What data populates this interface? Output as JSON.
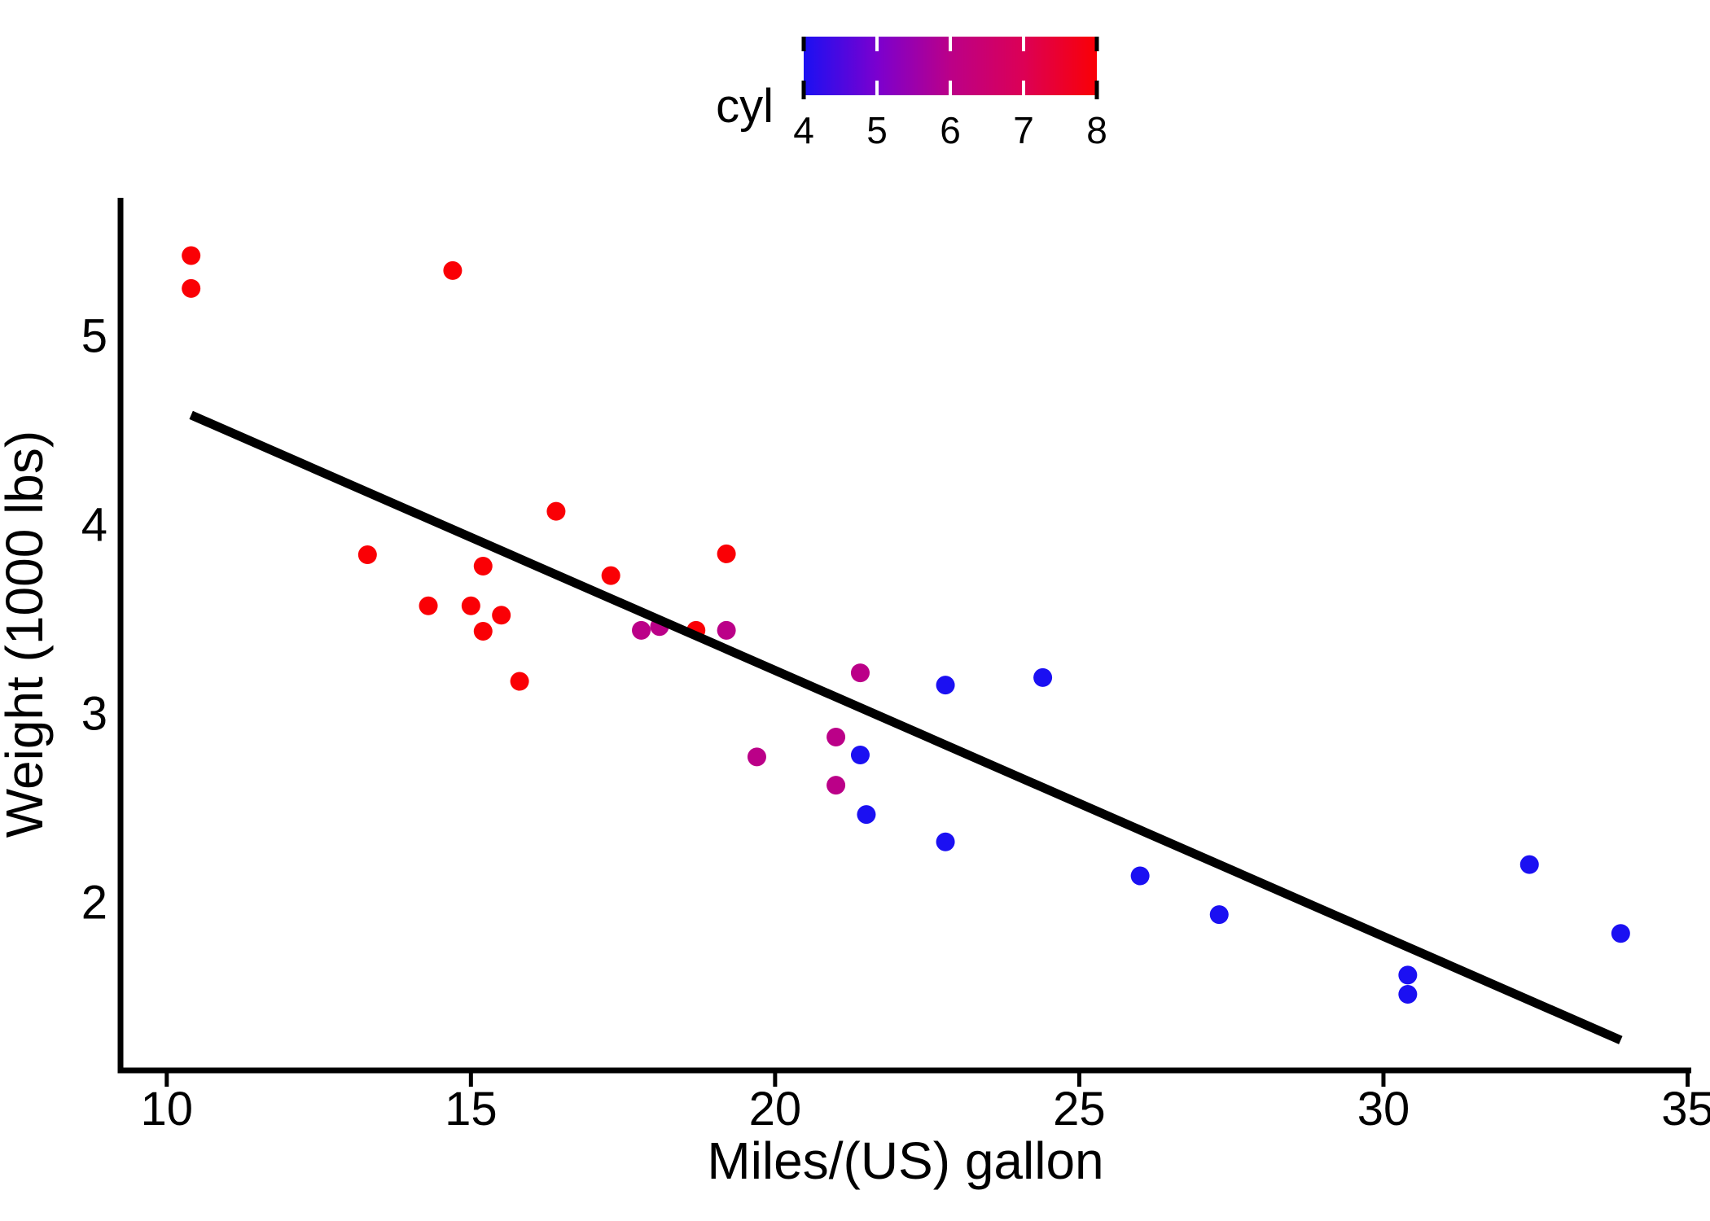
{
  "chart_data": {
    "type": "scatter",
    "title": "",
    "xlabel": "Miles/(US) gallon",
    "ylabel": "Weight (1000 lbs)",
    "xlim": [
      9.24,
      35.06
    ],
    "ylim": [
      1.11,
      5.73
    ],
    "x_ticks": [
      "10",
      "15",
      "20",
      "25",
      "30",
      "35"
    ],
    "x_tick_values": [
      10,
      15,
      20,
      25,
      30,
      35
    ],
    "y_ticks": [
      "2",
      "3",
      "4",
      "5"
    ],
    "y_tick_values": [
      2,
      3,
      4,
      5
    ],
    "grid": "off",
    "legend": {
      "title": "cyl",
      "position": "top-center",
      "style": "colorbar",
      "tick_labels": [
        "4",
        "5",
        "6",
        "7",
        "8"
      ],
      "tick_values": [
        4,
        5,
        6,
        7,
        8
      ],
      "gradient_stops": [
        {
          "offset": 0.0,
          "color": "#1B10F2"
        },
        {
          "offset": 0.25,
          "color": "#7B00CF"
        },
        {
          "offset": 0.5,
          "color": "#BB0088"
        },
        {
          "offset": 0.75,
          "color": "#DC0055"
        },
        {
          "offset": 1.0,
          "color": "#FA0005"
        }
      ]
    },
    "color_key": "cyl",
    "cyl_colors": {
      "4": "#1B10F2",
      "6": "#BB0088",
      "8": "#FA0005"
    },
    "point_color_low": "#1B10F2",
    "point_color_high": "#FA0005",
    "trend_line": {
      "x1": 10.4,
      "y1": 4.58,
      "x2": 33.9,
      "y2": 1.27,
      "color": "#000000"
    },
    "points": [
      {
        "mpg": 21.0,
        "wt": 2.62,
        "cyl": 6
      },
      {
        "mpg": 21.0,
        "wt": 2.875,
        "cyl": 6
      },
      {
        "mpg": 22.8,
        "wt": 2.32,
        "cyl": 4
      },
      {
        "mpg": 21.4,
        "wt": 3.215,
        "cyl": 6
      },
      {
        "mpg": 18.7,
        "wt": 3.44,
        "cyl": 8
      },
      {
        "mpg": 18.1,
        "wt": 3.46,
        "cyl": 6
      },
      {
        "mpg": 14.3,
        "wt": 3.57,
        "cyl": 8
      },
      {
        "mpg": 24.4,
        "wt": 3.19,
        "cyl": 4
      },
      {
        "mpg": 22.8,
        "wt": 3.15,
        "cyl": 4
      },
      {
        "mpg": 19.2,
        "wt": 3.44,
        "cyl": 6
      },
      {
        "mpg": 17.8,
        "wt": 3.44,
        "cyl": 6
      },
      {
        "mpg": 16.4,
        "wt": 4.07,
        "cyl": 8
      },
      {
        "mpg": 17.3,
        "wt": 3.73,
        "cyl": 8
      },
      {
        "mpg": 15.2,
        "wt": 3.78,
        "cyl": 8
      },
      {
        "mpg": 10.4,
        "wt": 5.25,
        "cyl": 8
      },
      {
        "mpg": 10.4,
        "wt": 5.424,
        "cyl": 8
      },
      {
        "mpg": 14.7,
        "wt": 5.345,
        "cyl": 8
      },
      {
        "mpg": 32.4,
        "wt": 2.2,
        "cyl": 4
      },
      {
        "mpg": 30.4,
        "wt": 1.615,
        "cyl": 4
      },
      {
        "mpg": 33.9,
        "wt": 1.835,
        "cyl": 4
      },
      {
        "mpg": 21.5,
        "wt": 2.465,
        "cyl": 4
      },
      {
        "mpg": 15.5,
        "wt": 3.52,
        "cyl": 8
      },
      {
        "mpg": 15.2,
        "wt": 3.435,
        "cyl": 8
      },
      {
        "mpg": 13.3,
        "wt": 3.84,
        "cyl": 8
      },
      {
        "mpg": 19.2,
        "wt": 3.845,
        "cyl": 8
      },
      {
        "mpg": 27.3,
        "wt": 1.935,
        "cyl": 4
      },
      {
        "mpg": 26.0,
        "wt": 2.14,
        "cyl": 4
      },
      {
        "mpg": 30.4,
        "wt": 1.513,
        "cyl": 4
      },
      {
        "mpg": 15.8,
        "wt": 3.17,
        "cyl": 8
      },
      {
        "mpg": 19.7,
        "wt": 2.77,
        "cyl": 6
      },
      {
        "mpg": 15.0,
        "wt": 3.57,
        "cyl": 8
      },
      {
        "mpg": 21.4,
        "wt": 2.78,
        "cyl": 4
      }
    ]
  }
}
